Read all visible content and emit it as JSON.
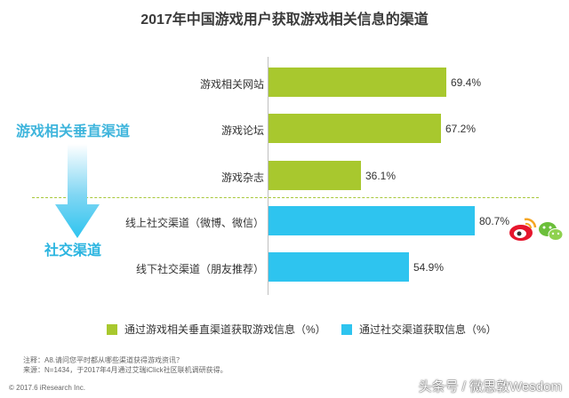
{
  "title": "2017年中国游戏用户获取游戏相关信息的渠道",
  "group_labels": {
    "vertical": "游戏相关垂直渠道",
    "social": "社交渠道"
  },
  "colors": {
    "vertical": "#a8c82e",
    "social": "#2ec4ef",
    "vertical_label": "#3fb5dc",
    "social_label": "#2bb5e0",
    "arrow": "#2ec4ef"
  },
  "chart_data": {
    "type": "bar",
    "orientation": "horizontal",
    "title": "2017年中国游戏用户获取游戏相关信息的渠道",
    "unit": "%",
    "xlim": [
      0,
      100
    ],
    "grid": false,
    "legend_placement": "bottom",
    "categories": [
      "游戏相关网站",
      "游戏论坛",
      "游戏杂志",
      "线上社交渠道（微博、微信）",
      "线下社交渠道（朋友推荐）"
    ],
    "values": [
      69.4,
      67.2,
      36.1,
      80.7,
      54.9
    ],
    "value_labels": [
      "69.4%",
      "67.2%",
      "36.1%",
      "80.7%",
      "54.9%"
    ],
    "groups": [
      "vertical",
      "vertical",
      "vertical",
      "social",
      "social"
    ],
    "series": [
      {
        "name": "通过游戏相关垂直渠道获取游戏信息（%）",
        "color": "#a8c82e"
      },
      {
        "name": "通过社交渠道获取信息（%）",
        "color": "#2ec4ef"
      }
    ]
  },
  "notes": {
    "note": "注释：A8.请问您平时都从哪些渠道获得游戏资讯？",
    "source": "来源：N=1434，于2017年4月通过艾瑞iClick社区联机调研获得。"
  },
  "footer": {
    "copyright": "© 2017.6 iResearch Inc.",
    "watermark": "头条号 / 微思敦Wesdom"
  },
  "icons": [
    "weibo-icon",
    "wechat-icon"
  ]
}
